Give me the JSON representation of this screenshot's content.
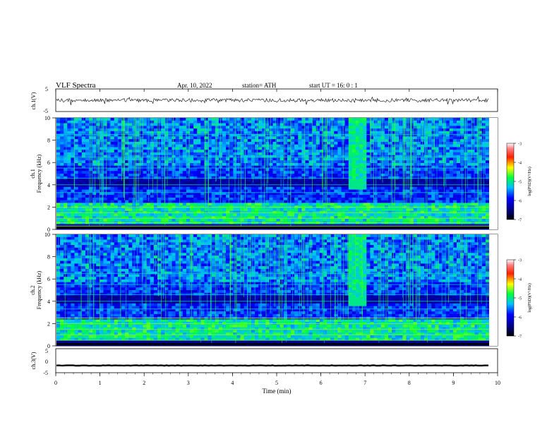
{
  "header": {
    "title": "VLF  Spectra",
    "date": "Apr. 10, 2022",
    "station": "station= ATH",
    "start": "start  UT  =    16: 0   : 1"
  },
  "chart_data": [
    {
      "type": "line",
      "panel": "ch1-waveform",
      "ylabel": "ch.1(V)",
      "ylim": [
        -5,
        5
      ],
      "yticks": [
        "5",
        "-5"
      ],
      "xlim": [
        0,
        10
      ],
      "baseline": 0,
      "amplitude_note": "noisy waveform near 0 V with sparse spikes"
    },
    {
      "type": "heatmap",
      "panel": "ch1-spectrogram",
      "ylabel": "ch.1\nFrequency  (kHz)",
      "ylabel_line1": "ch.1",
      "ylabel_line2": "Frequency  (kHz)",
      "ylim": [
        0,
        10
      ],
      "yticks": [
        "0",
        "2",
        "4",
        "6",
        "8",
        "10"
      ],
      "xlim": [
        0,
        9.8
      ],
      "colorbar": {
        "label": "log(PSD)(V²/Hz)",
        "range": [
          -7,
          -3
        ],
        "ticks": [
          "-3",
          "-4",
          "-5",
          "-6",
          "-7"
        ]
      },
      "bands_khz": [
        0.3,
        0.6,
        1.0,
        1.5,
        2.0,
        3.3,
        4.0,
        4.6,
        5.5,
        6.5,
        8.5
      ],
      "events_min": [
        6.8
      ]
    },
    {
      "type": "heatmap",
      "panel": "ch2-spectrogram",
      "ylabel_line1": "ch.2",
      "ylabel_line2": "Frequency  (kHz)",
      "ylim": [
        0,
        10
      ],
      "yticks": [
        "0",
        "2",
        "4",
        "6",
        "8",
        "10"
      ],
      "xlim": [
        0,
        9.8
      ],
      "colorbar": {
        "label": "log(PSD)(V²/Hz)",
        "range": [
          -7,
          -3
        ],
        "ticks": [
          "-3",
          "-4",
          "-5",
          "-6",
          "-7"
        ]
      },
      "bands_khz": [
        0.5,
        1.0,
        1.5,
        2.0,
        2.5,
        3.3,
        4.0,
        4.6,
        5.5,
        6.5
      ],
      "events_min": [
        6.8
      ]
    },
    {
      "type": "line",
      "panel": "ch3-waveform",
      "ylabel": "ch.3(V)",
      "ylim": [
        -5,
        5
      ],
      "yticks": [
        "5",
        "0",
        "-5"
      ],
      "xlim": [
        0,
        10
      ],
      "baseline": -2,
      "xlabel": "Time  (min)",
      "xticks": [
        "0",
        "1",
        "2",
        "3",
        "4",
        "5",
        "6",
        "7",
        "8",
        "9",
        "10"
      ]
    }
  ]
}
